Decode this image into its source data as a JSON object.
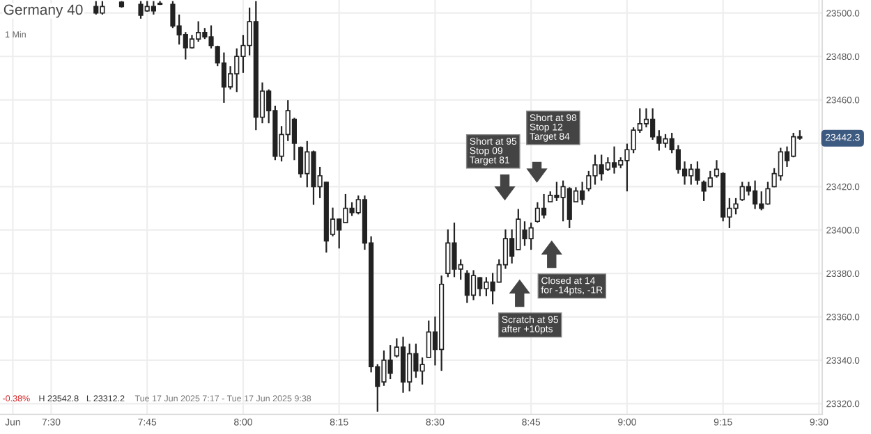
{
  "chart_data": {
    "type": "candlestick",
    "title": "Germany 40",
    "subtitle": "1 Min",
    "color": "#222222",
    "grid": true,
    "xlim": [
      "2025-06-17T07:22",
      "2025-06-17T09:30:30"
    ],
    "xticks": [
      {
        "value": "2025-06-17T07:24",
        "label": "Jun"
      },
      {
        "value": "2025-06-17T07:30",
        "label": "7:30"
      },
      {
        "value": "2025-06-17T07:45",
        "label": "7:45"
      },
      {
        "value": "2025-06-17T08:00",
        "label": "8:00"
      },
      {
        "value": "2025-06-17T08:15",
        "label": "8:15"
      },
      {
        "value": "2025-06-17T08:30",
        "label": "8:30"
      },
      {
        "value": "2025-06-17T08:45",
        "label": "8:45"
      },
      {
        "value": "2025-06-17T09:00",
        "label": "9:00"
      },
      {
        "value": "2025-06-17T09:15",
        "label": "9:15"
      },
      {
        "value": "2025-06-17T09:30",
        "label": "9:30"
      }
    ],
    "ylim": [
      23315,
      23506
    ],
    "yticks": [
      {
        "value": 23320,
        "label": "23320.0"
      },
      {
        "value": 23340,
        "label": "23340.0"
      },
      {
        "value": 23360,
        "label": "23360.0"
      },
      {
        "value": 23380,
        "label": "23380.0"
      },
      {
        "value": 23400,
        "label": "23400.0"
      },
      {
        "value": 23420,
        "label": "23420.0"
      },
      {
        "value": 23440,
        "label": null
      },
      {
        "value": 23460,
        "label": "23460.0"
      },
      {
        "value": 23480,
        "label": "23480.0"
      },
      {
        "value": 23500,
        "label": "23500.0"
      }
    ],
    "annotations": [
      "Short at 95\nStop 09\nTarget 81",
      "Short at 98\nStop 12\nTarget 84",
      "Closed at 14\nfor -14pts, -1R",
      "Scratch at 95\nafter +10pts",
      {
        "text": "23442.3",
        "y": 23442.3
      },
      "-0.38%",
      "H 23542.8",
      "L 23312.2",
      "Tue 17 Jun 2025 7:17 - Tue 17 Jun 2025 9:38"
    ],
    "x": [
      "2025-06-17T07:37",
      "2025-06-17T07:38",
      "2025-06-17T07:41",
      "2025-06-17T07:44",
      "2025-06-17T07:45",
      "2025-06-17T07:46",
      "2025-06-17T07:47",
      "2025-06-17T07:49",
      "2025-06-17T07:50",
      "2025-06-17T07:51",
      "2025-06-17T07:52",
      "2025-06-17T07:53",
      "2025-06-17T07:54",
      "2025-06-17T07:55",
      "2025-06-17T07:56",
      "2025-06-17T07:57",
      "2025-06-17T07:58",
      "2025-06-17T07:59",
      "2025-06-17T08:00",
      "2025-06-17T08:01",
      "2025-06-17T08:02",
      "2025-06-17T08:03",
      "2025-06-17T08:04",
      "2025-06-17T08:05",
      "2025-06-17T08:06",
      "2025-06-17T08:07",
      "2025-06-17T08:08",
      "2025-06-17T08:09",
      "2025-06-17T08:10",
      "2025-06-17T08:11",
      "2025-06-17T08:12",
      "2025-06-17T08:13",
      "2025-06-17T08:14",
      "2025-06-17T08:15",
      "2025-06-17T08:16",
      "2025-06-17T08:17",
      "2025-06-17T08:18",
      "2025-06-17T08:19",
      "2025-06-17T08:20",
      "2025-06-17T08:21",
      "2025-06-17T08:22",
      "2025-06-17T08:23",
      "2025-06-17T08:24",
      "2025-06-17T08:25",
      "2025-06-17T08:26",
      "2025-06-17T08:27",
      "2025-06-17T08:28",
      "2025-06-17T08:29",
      "2025-06-17T08:30",
      "2025-06-17T08:31",
      "2025-06-17T08:32",
      "2025-06-17T08:33",
      "2025-06-17T08:34",
      "2025-06-17T08:35",
      "2025-06-17T08:36",
      "2025-06-17T08:37",
      "2025-06-17T08:38",
      "2025-06-17T08:39",
      "2025-06-17T08:40",
      "2025-06-17T08:41",
      "2025-06-17T08:42",
      "2025-06-17T08:43",
      "2025-06-17T08:44",
      "2025-06-17T08:45",
      "2025-06-17T08:46",
      "2025-06-17T08:47",
      "2025-06-17T08:48",
      "2025-06-17T08:49",
      "2025-06-17T08:50",
      "2025-06-17T08:51",
      "2025-06-17T08:52",
      "2025-06-17T08:53",
      "2025-06-17T08:54",
      "2025-06-17T08:55",
      "2025-06-17T08:56",
      "2025-06-17T08:57",
      "2025-06-17T08:58",
      "2025-06-17T08:59",
      "2025-06-17T09:00",
      "2025-06-17T09:01",
      "2025-06-17T09:02",
      "2025-06-17T09:03",
      "2025-06-17T09:04",
      "2025-06-17T09:05",
      "2025-06-17T09:06",
      "2025-06-17T09:07",
      "2025-06-17T09:08",
      "2025-06-17T09:09",
      "2025-06-17T09:10",
      "2025-06-17T09:11",
      "2025-06-17T09:12",
      "2025-06-17T09:13",
      "2025-06-17T09:14",
      "2025-06-17T09:15",
      "2025-06-17T09:16",
      "2025-06-17T09:17",
      "2025-06-17T09:18",
      "2025-06-17T09:19",
      "2025-06-17T09:20",
      "2025-06-17T09:21",
      "2025-06-17T09:22",
      "2025-06-17T09:23",
      "2025-06-17T09:24",
      "2025-06-17T09:25",
      "2025-06-17T09:26",
      "2025-06-17T09:27"
    ],
    "ohlc": [
      [
        23503,
        23505.5,
        23499.3,
        23500
      ],
      [
        23500,
        23505.5,
        23499.3,
        23503
      ],
      [
        23505,
        23505.5,
        23502.5,
        23503
      ],
      [
        23504,
        23505.5,
        23497.4,
        23499
      ],
      [
        23501,
        23505.5,
        23500.6,
        23503
      ],
      [
        23503,
        23505.5,
        23499.3,
        23501
      ],
      [
        23504,
        23505.5,
        23503.7,
        23504.5
      ],
      [
        23504,
        23505.5,
        23493.1,
        23494
      ],
      [
        23494,
        23499.3,
        23485.5,
        23490
      ],
      [
        23490,
        23491.2,
        23478.6,
        23484
      ],
      [
        23484,
        23489.9,
        23483.7,
        23488
      ],
      [
        23488,
        23496.2,
        23486.8,
        23491
      ],
      [
        23491,
        23493.1,
        23488,
        23489
      ],
      [
        23489,
        23494.3,
        23483.7,
        23485
      ],
      [
        23484.5,
        23484.9,
        23475.5,
        23477
      ],
      [
        23477,
        23481.8,
        23458.6,
        23466
      ],
      [
        23466,
        23475.5,
        23464.8,
        23472
      ],
      [
        23472,
        23483.7,
        23463.6,
        23480
      ],
      [
        23480,
        23489.9,
        23472.4,
        23485
      ],
      [
        23485,
        23502.5,
        23480.5,
        23496
      ],
      [
        23496,
        23505.5,
        23446,
        23452
      ],
      [
        23452,
        23468,
        23449.2,
        23464
      ],
      [
        23464,
        23464.8,
        23449.2,
        23455
      ],
      [
        23455,
        23457.3,
        23432.2,
        23434
      ],
      [
        23434,
        23447.9,
        23431.6,
        23444
      ],
      [
        23444,
        23459.8,
        23441,
        23455
      ],
      [
        23451,
        23451.7,
        23432.2,
        23440
      ],
      [
        23438,
        23438.5,
        23424.1,
        23426
      ],
      [
        23426,
        23441,
        23419.7,
        23436
      ],
      [
        23436,
        23436.6,
        23411.6,
        23420
      ],
      [
        23420,
        23429.1,
        23414.7,
        23425
      ],
      [
        23422,
        23422.2,
        23389.6,
        23395
      ],
      [
        23398,
        23410.3,
        23397.1,
        23405
      ],
      [
        23405,
        23405.3,
        23391.5,
        23400
      ],
      [
        23403.4,
        23416.6,
        23403.4,
        23410
      ],
      [
        23410,
        23412.8,
        23406.5,
        23408
      ],
      [
        23408,
        23415.9,
        23407.2,
        23414
      ],
      [
        23414,
        23415.9,
        23390.9,
        23394
      ],
      [
        23394,
        23397.1,
        23334.4,
        23337
      ],
      [
        23337,
        23338.2,
        23316.3,
        23328
      ],
      [
        23330,
        23344.5,
        23328.2,
        23340
      ],
      [
        23340,
        23347,
        23331.3,
        23334
      ],
      [
        23342,
        23350.1,
        23341.3,
        23346
      ],
      [
        23346,
        23350.8,
        23325,
        23330
      ],
      [
        23330,
        23347.6,
        23325.7,
        23343
      ],
      [
        23343,
        23347.6,
        23331.9,
        23335
      ],
      [
        23335,
        23341.3,
        23328.8,
        23338
      ],
      [
        23341.3,
        23358.3,
        23341.3,
        23353
      ],
      [
        23353,
        23360.1,
        23337.6,
        23345
      ],
      [
        23345,
        23379,
        23335.1,
        23375
      ],
      [
        23380,
        23400.3,
        23378.3,
        23394
      ],
      [
        23394,
        23403.4,
        23378.3,
        23382
      ],
      [
        23382,
        23386.5,
        23377.1,
        23384
      ],
      [
        23380,
        23381.5,
        23366.4,
        23370
      ],
      [
        23370,
        23381.5,
        23367.7,
        23379
      ],
      [
        23378,
        23378.3,
        23369.5,
        23373
      ],
      [
        23373,
        23378.3,
        23369.5,
        23376
      ],
      [
        23376,
        23380.2,
        23365.8,
        23372
      ],
      [
        23376,
        23386.5,
        23375.8,
        23384
      ],
      [
        23384,
        23400.3,
        23382.1,
        23396
      ],
      [
        23396,
        23400.3,
        23384.6,
        23388
      ],
      [
        23391,
        23409.7,
        23390.9,
        23405
      ],
      [
        23400,
        23404,
        23392.7,
        23396
      ],
      [
        23396,
        23403.4,
        23390.9,
        23401
      ],
      [
        23404,
        23412.8,
        23403.4,
        23410
      ],
      [
        23410,
        23416.6,
        23405.3,
        23407
      ],
      [
        23413,
        23417.8,
        23412.8,
        23416
      ],
      [
        23416,
        23422.2,
        23413.4,
        23415
      ],
      [
        23415,
        23422.8,
        23404,
        23420
      ],
      [
        23419,
        23419.7,
        23400.9,
        23405
      ],
      [
        23413,
        23419.7,
        23412.8,
        23418
      ],
      [
        23418,
        23422.2,
        23411.6,
        23414
      ],
      [
        23419,
        23427.2,
        23417.8,
        23425
      ],
      [
        23425,
        23434.7,
        23420.9,
        23430
      ],
      [
        23430,
        23434.7,
        23422.8,
        23426
      ],
      [
        23428,
        23433.5,
        23427.2,
        23431
      ],
      [
        23431,
        23438.5,
        23426,
        23429
      ],
      [
        23430,
        23433.5,
        23428.5,
        23432
      ],
      [
        23432,
        23439.8,
        23417.8,
        23437
      ],
      [
        23437,
        23447.3,
        23435.4,
        23446
      ],
      [
        23446,
        23456.1,
        23444.8,
        23449
      ],
      [
        23449,
        23456.1,
        23447.3,
        23451
      ],
      [
        23451,
        23456.1,
        23441.6,
        23443
      ],
      [
        23443,
        23446,
        23436.6,
        23440
      ],
      [
        23440,
        23444.2,
        23437.9,
        23442
      ],
      [
        23442,
        23444.8,
        23435.4,
        23437
      ],
      [
        23437,
        23439.1,
        23426,
        23428
      ],
      [
        23428,
        23431.6,
        23420.9,
        23425
      ],
      [
        23425,
        23430.4,
        23420.9,
        23428
      ],
      [
        23428,
        23431.6,
        23420.9,
        23423
      ],
      [
        23422,
        23422.8,
        23413.4,
        23418
      ],
      [
        23420,
        23427.2,
        23419.7,
        23424
      ],
      [
        23425,
        23432.2,
        23424.1,
        23428
      ],
      [
        23426,
        23426.6,
        23404,
        23406
      ],
      [
        23406,
        23414.7,
        23400.9,
        23410
      ],
      [
        23410,
        23414.7,
        23407.2,
        23412
      ],
      [
        23414,
        23422.2,
        23413.4,
        23420
      ],
      [
        23420,
        23422.2,
        23415.9,
        23418
      ],
      [
        23418,
        23422.8,
        23409.7,
        23412
      ],
      [
        23412,
        23417.8,
        23409.1,
        23410
      ],
      [
        23412,
        23422.2,
        23411.6,
        23419
      ],
      [
        23420,
        23428.5,
        23419.7,
        23426
      ],
      [
        23425,
        23437.9,
        23422.8,
        23436
      ],
      [
        23436,
        23438.5,
        23429.1,
        23432
      ],
      [
        23434,
        23444.8,
        23433.5,
        23443
      ],
      [
        23443,
        23446,
        23441.6,
        23442.3
      ]
    ]
  }
}
